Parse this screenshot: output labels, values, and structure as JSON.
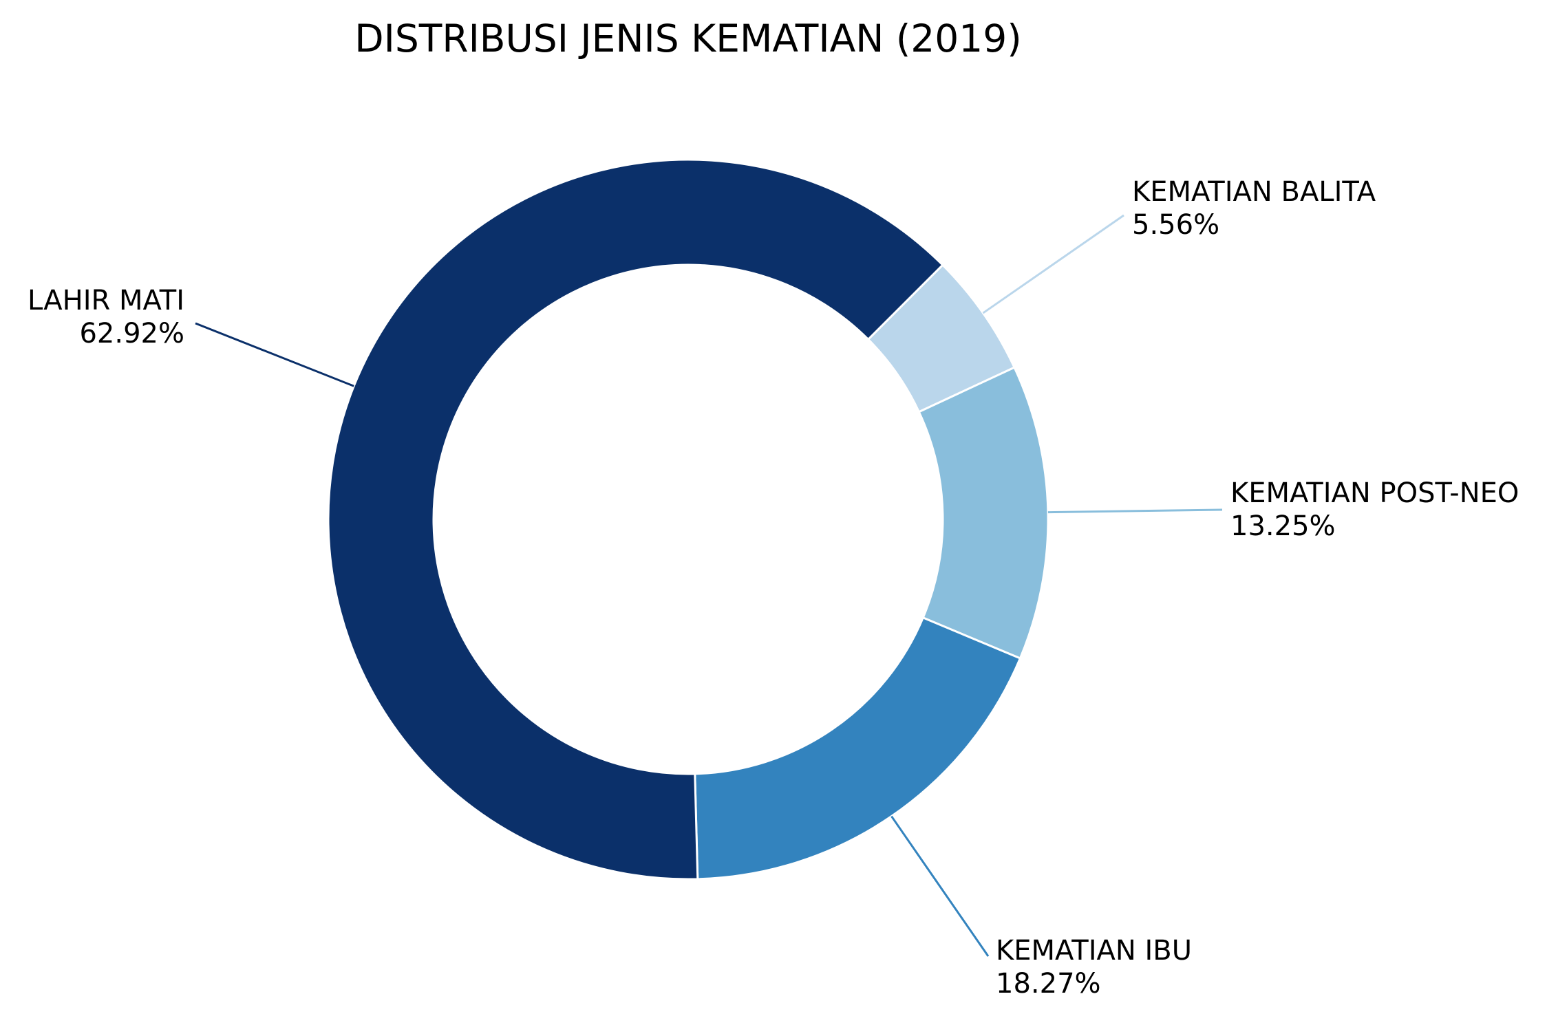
{
  "chart_data": {
    "type": "pie",
    "style": "donut",
    "title": "DISTRIBUSI JENIS KEMATIAN (2019)",
    "legend": "none",
    "slices": [
      {
        "name": "KEMATIAN BALITA",
        "value": 5.56,
        "value_label": "5.56%",
        "color": "#bad6eb"
      },
      {
        "name": "KEMATIAN POST-NEO",
        "value": 13.25,
        "value_label": "13.25%",
        "color": "#89bedc"
      },
      {
        "name": "KEMATIAN IBU",
        "value": 18.27,
        "value_label": "18.27%",
        "color": "#3383be"
      },
      {
        "name": "LAHIR MATI",
        "value": 62.92,
        "value_label": "62.92%",
        "color": "#0b306a"
      }
    ]
  }
}
